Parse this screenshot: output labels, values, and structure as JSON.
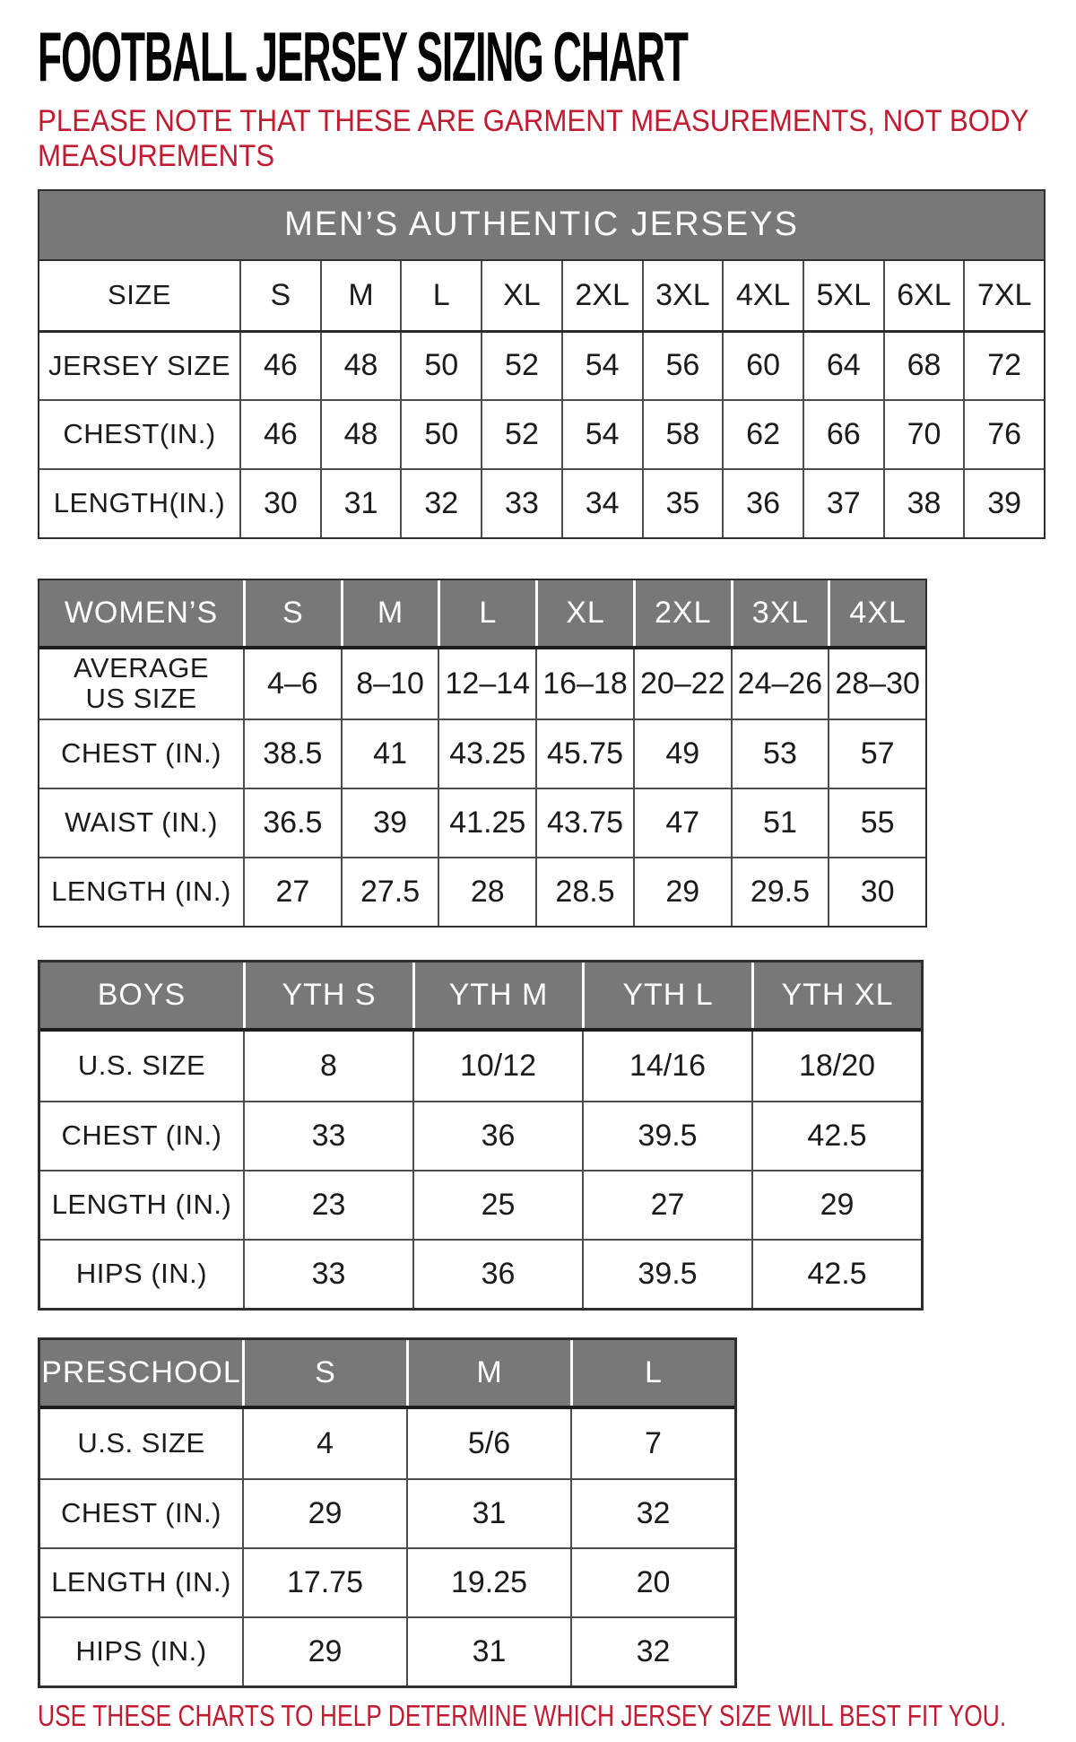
{
  "page": {
    "title": "FOOTBALL JERSEY SIZING CHART",
    "note_lines": [
      "PLEASE NOTE THAT THESE ARE GARMENT MEASUREMENTS, NOT BODY",
      "MEASUREMENTS"
    ],
    "footer": "USE THESE CHARTS TO HELP DETERMINE WHICH JERSEY SIZE WILL BEST FIT YOU.",
    "colors": {
      "accent_red": "#c01b30",
      "header_gray": "#787878"
    }
  },
  "tables": {
    "mens": {
      "title": "MEN’S AUTHENTIC JERSEYS",
      "rows": [
        {
          "label": "SIZE",
          "values": [
            "S",
            "M",
            "L",
            "XL",
            "2XL",
            "3XL",
            "4XL",
            "5XL",
            "6XL",
            "7XL"
          ]
        },
        {
          "label": "JERSEY SIZE",
          "values": [
            "46",
            "48",
            "50",
            "52",
            "54",
            "56",
            "60",
            "64",
            "68",
            "72"
          ]
        },
        {
          "label": "CHEST(IN.)",
          "values": [
            "46",
            "48",
            "50",
            "52",
            "54",
            "58",
            "62",
            "66",
            "70",
            "76"
          ]
        },
        {
          "label": "LENGTH(IN.)",
          "values": [
            "30",
            "31",
            "32",
            "33",
            "34",
            "35",
            "36",
            "37",
            "38",
            "39"
          ]
        }
      ]
    },
    "womens": {
      "header": {
        "label": "WOMEN’S",
        "columns": [
          "S",
          "M",
          "L",
          "XL",
          "2XL",
          "3XL",
          "4XL"
        ]
      },
      "rows": [
        {
          "label": "AVERAGE US SIZE",
          "values": [
            "4–6",
            "8–10",
            "12–14",
            "16–18",
            "20–22",
            "24–26",
            "28–30"
          ]
        },
        {
          "label": "CHEST (IN.)",
          "values": [
            "38.5",
            "41",
            "43.25",
            "45.75",
            "49",
            "53",
            "57"
          ]
        },
        {
          "label": "WAIST (IN.)",
          "values": [
            "36.5",
            "39",
            "41.25",
            "43.75",
            "47",
            "51",
            "55"
          ]
        },
        {
          "label": "LENGTH (IN.)",
          "values": [
            "27",
            "27.5",
            "28",
            "28.5",
            "29",
            "29.5",
            "30"
          ]
        }
      ]
    },
    "boys": {
      "header": {
        "label": "BOYS",
        "columns": [
          "YTH S",
          "YTH M",
          "YTH L",
          "YTH XL"
        ]
      },
      "rows": [
        {
          "label": "U.S. SIZE",
          "values": [
            "8",
            "10/12",
            "14/16",
            "18/20"
          ]
        },
        {
          "label": "CHEST (IN.)",
          "values": [
            "33",
            "36",
            "39.5",
            "42.5"
          ]
        },
        {
          "label": "LENGTH (IN.)",
          "values": [
            "23",
            "25",
            "27",
            "29"
          ]
        },
        {
          "label": "HIPS (IN.)",
          "values": [
            "33",
            "36",
            "39.5",
            "42.5"
          ]
        }
      ]
    },
    "preschool": {
      "header": {
        "label": "PRESCHOOL",
        "columns": [
          "S",
          "M",
          "L"
        ]
      },
      "rows": [
        {
          "label": "U.S. SIZE",
          "values": [
            "4",
            "5/6",
            "7"
          ]
        },
        {
          "label": "CHEST (IN.)",
          "values": [
            "29",
            "31",
            "32"
          ]
        },
        {
          "label": "LENGTH (IN.)",
          "values": [
            "17.75",
            "19.25",
            "20"
          ]
        },
        {
          "label": "HIPS (IN.)",
          "values": [
            "29",
            "31",
            "32"
          ]
        }
      ]
    }
  }
}
